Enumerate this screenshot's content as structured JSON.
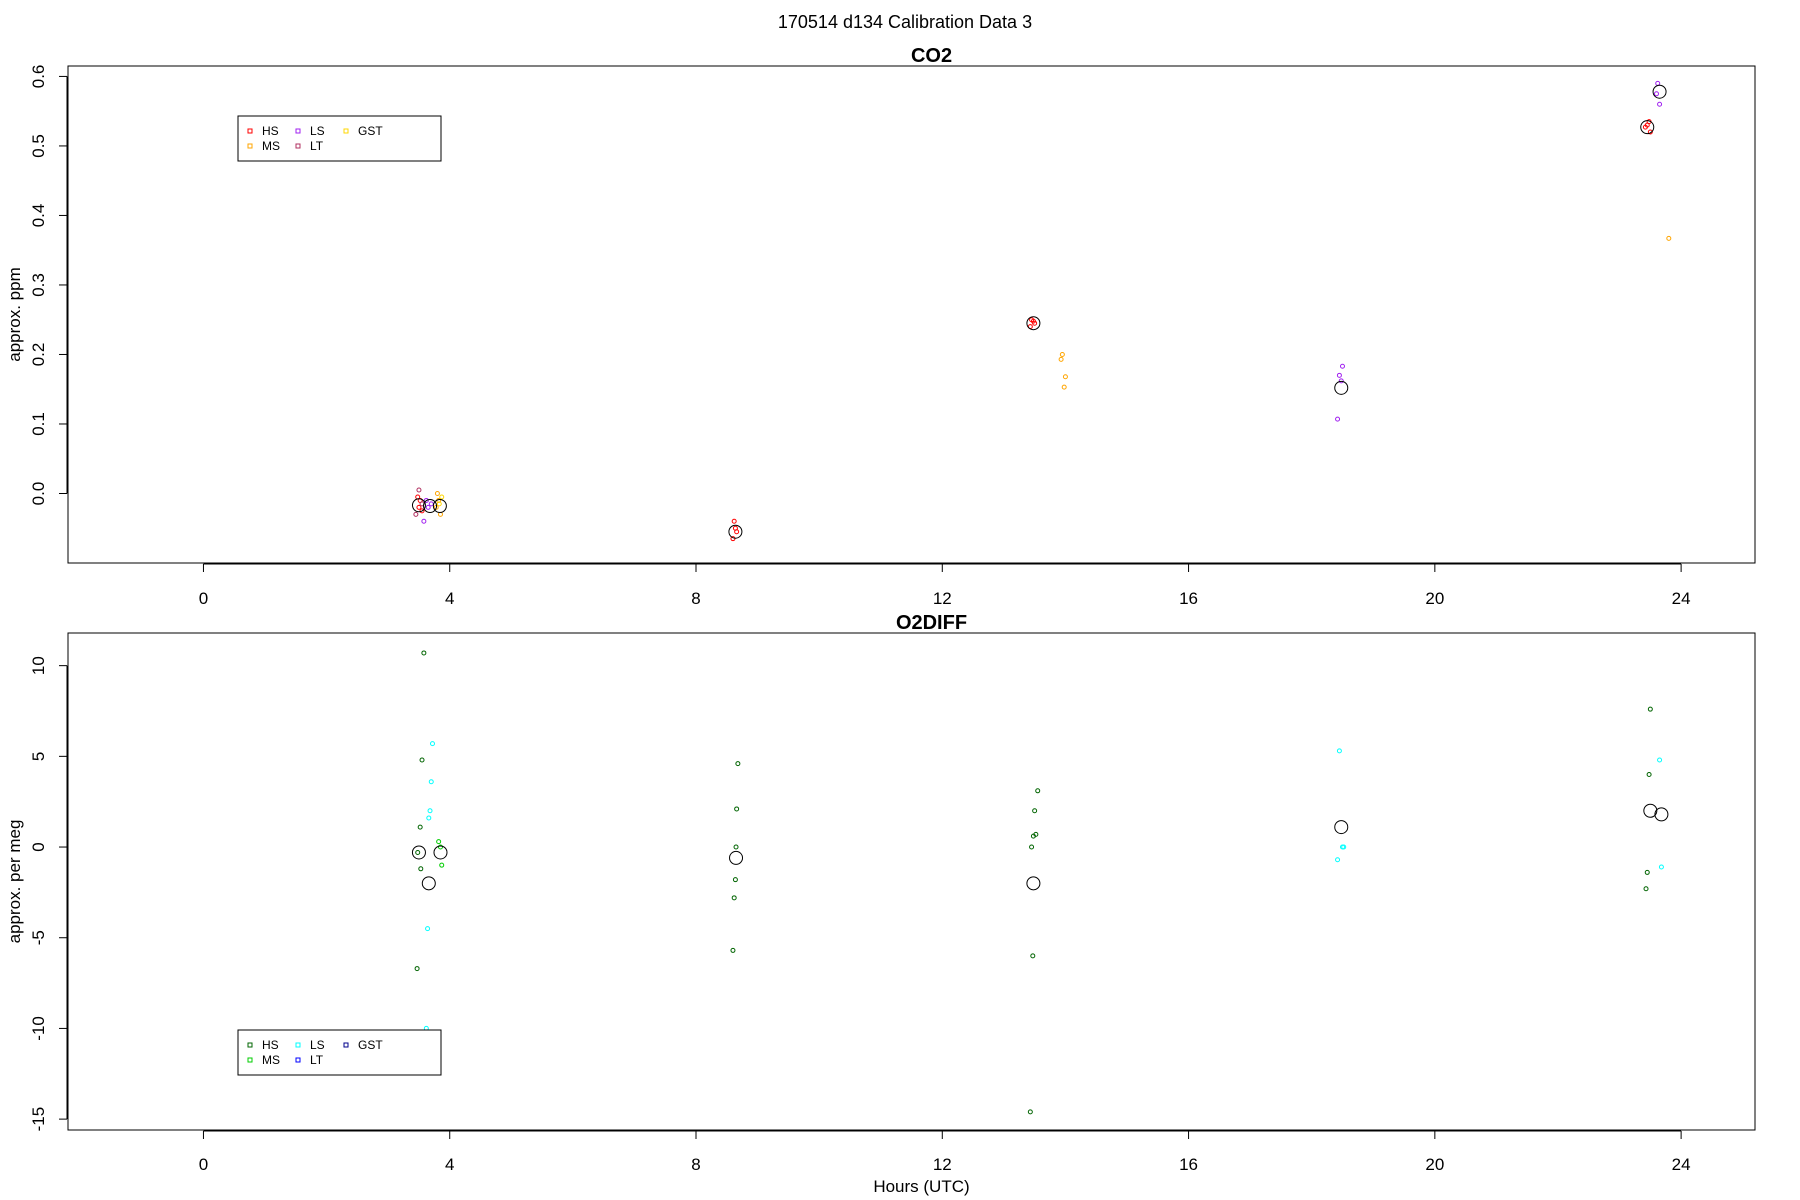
{
  "figure": {
    "main_title": "170514   d134   Calibration Data 3"
  },
  "chart_data": [
    {
      "type": "scatter",
      "title": "CO2",
      "xlabel": "",
      "ylabel": "approx. ppm",
      "xlim": [
        -2.2,
        25.2
      ],
      "ylim": [
        -0.1,
        0.615
      ],
      "xticks": [
        0,
        4,
        8,
        12,
        16,
        20,
        24
      ],
      "yticks": [
        0.0,
        0.1,
        0.2,
        0.3,
        0.4,
        0.5,
        0.6
      ],
      "ytick_labels": [
        "0.0",
        "0.1",
        "0.2",
        "0.3",
        "0.4",
        "0.5",
        "0.6"
      ],
      "legend": {
        "position": "top-left",
        "entries": [
          {
            "name": "HS",
            "color": "#ff0000"
          },
          {
            "name": "MS",
            "color": "#ffa500"
          },
          {
            "name": "LS",
            "color": "#a020f0"
          },
          {
            "name": "LT",
            "color": "#b03060"
          },
          {
            "name": "GST",
            "color": "#ffd700"
          }
        ]
      },
      "series": [
        {
          "name": "HS",
          "color": "#ff0000",
          "points": [
            [
              3.5,
              -0.02
            ],
            [
              3.52,
              -0.01
            ],
            [
              3.55,
              -0.025
            ],
            [
              3.48,
              -0.005
            ],
            [
              8.62,
              -0.04
            ],
            [
              8.64,
              -0.05
            ],
            [
              8.66,
              -0.055
            ],
            [
              8.6,
              -0.065
            ],
            [
              13.45,
              0.25
            ],
            [
              13.5,
              0.245
            ],
            [
              13.43,
              0.24
            ],
            [
              13.48,
              0.248
            ],
            [
              23.45,
              0.53
            ],
            [
              23.5,
              0.52
            ],
            [
              23.48,
              0.535
            ],
            [
              23.42,
              0.527
            ]
          ]
        },
        {
          "name": "MS",
          "color": "#ffa500",
          "points": [
            [
              3.8,
              0.0
            ],
            [
              3.82,
              -0.01
            ],
            [
              3.85,
              -0.03
            ],
            [
              3.78,
              -0.02
            ],
            [
              13.95,
              0.2
            ],
            [
              13.93,
              0.193
            ],
            [
              14.0,
              0.168
            ],
            [
              13.98,
              0.153
            ],
            [
              23.8,
              0.367
            ]
          ]
        },
        {
          "name": "LS",
          "color": "#a020f0",
          "points": [
            [
              3.62,
              -0.01
            ],
            [
              3.65,
              -0.02
            ],
            [
              3.58,
              -0.04
            ],
            [
              3.7,
              -0.015
            ],
            [
              18.42,
              0.107
            ],
            [
              18.45,
              0.17
            ],
            [
              18.5,
              0.183
            ],
            [
              18.48,
              0.162
            ],
            [
              23.62,
              0.59
            ],
            [
              23.65,
              0.56
            ],
            [
              23.6,
              0.575
            ]
          ]
        },
        {
          "name": "LT",
          "color": "#b03060",
          "points": [
            [
              3.45,
              -0.03
            ],
            [
              3.5,
              0.005
            ],
            [
              3.55,
              -0.015
            ]
          ]
        },
        {
          "name": "GST",
          "color": "#ffd700",
          "points": [
            [
              3.83,
              -0.015
            ],
            [
              3.87,
              -0.005
            ]
          ]
        }
      ],
      "means": [
        [
          3.5,
          -0.017
        ],
        [
          3.68,
          -0.018
        ],
        [
          3.84,
          -0.018
        ],
        [
          8.64,
          -0.055
        ],
        [
          13.48,
          0.245
        ],
        [
          18.48,
          0.152
        ],
        [
          23.45,
          0.527
        ],
        [
          23.65,
          0.578
        ]
      ]
    },
    {
      "type": "scatter",
      "title": "O2DIFF",
      "xlabel": "Hours (UTC)",
      "ylabel": "approx. per meg",
      "xlim": [
        -2.2,
        25.2
      ],
      "ylim": [
        -15.6,
        11.8
      ],
      "xticks": [
        0,
        4,
        8,
        12,
        16,
        20,
        24
      ],
      "yticks": [
        -15,
        -10,
        -5,
        0,
        5,
        10
      ],
      "ytick_labels": [
        "-15",
        "-10",
        "-5",
        "0",
        "5",
        "10"
      ],
      "legend": {
        "position": "bottom-left",
        "entries": [
          {
            "name": "HS",
            "color": "#006400"
          },
          {
            "name": "MS",
            "color": "#00cd00"
          },
          {
            "name": "LS",
            "color": "#00ffff"
          },
          {
            "name": "LT",
            "color": "#0000ff"
          },
          {
            "name": "GST",
            "color": "#00008b"
          }
        ]
      },
      "series": [
        {
          "name": "HS",
          "color": "#006400",
          "points": [
            [
              3.58,
              10.7
            ],
            [
              3.55,
              4.8
            ],
            [
              3.52,
              1.1
            ],
            [
              3.48,
              -0.3
            ],
            [
              3.53,
              -1.2
            ],
            [
              3.47,
              -6.7
            ],
            [
              8.68,
              4.6
            ],
            [
              8.66,
              2.1
            ],
            [
              8.65,
              0.0
            ],
            [
              8.64,
              -1.8
            ],
            [
              8.62,
              -2.8
            ],
            [
              8.6,
              -5.7
            ],
            [
              13.55,
              3.1
            ],
            [
              13.5,
              2.0
            ],
            [
              13.52,
              0.7
            ],
            [
              13.48,
              0.6
            ],
            [
              13.45,
              0.0
            ],
            [
              13.47,
              -6.0
            ],
            [
              13.43,
              -14.6
            ],
            [
              23.5,
              7.6
            ],
            [
              23.48,
              4.0
            ],
            [
              23.45,
              -1.4
            ],
            [
              23.43,
              -2.3
            ]
          ]
        },
        {
          "name": "MS",
          "color": "#00cd00",
          "points": [
            [
              3.82,
              0.3
            ],
            [
              3.87,
              -1.0
            ],
            [
              3.85,
              0.0
            ]
          ]
        },
        {
          "name": "LS",
          "color": "#00ffff",
          "points": [
            [
              3.72,
              5.7
            ],
            [
              3.7,
              3.6
            ],
            [
              3.68,
              2.0
            ],
            [
              3.66,
              1.6
            ],
            [
              3.64,
              -4.5
            ],
            [
              3.62,
              -10.0
            ],
            [
              18.45,
              5.3
            ],
            [
              18.5,
              0.0
            ],
            [
              18.52,
              0.0
            ],
            [
              18.42,
              -0.7
            ],
            [
              23.65,
              4.8
            ],
            [
              23.68,
              -1.1
            ]
          ]
        }
      ],
      "means": [
        [
          3.5,
          -0.3
        ],
        [
          3.66,
          -2.0
        ],
        [
          3.85,
          -0.3
        ],
        [
          8.65,
          -0.6
        ],
        [
          13.48,
          -2.0
        ],
        [
          18.48,
          1.1
        ],
        [
          23.5,
          2.0
        ],
        [
          23.68,
          1.8
        ]
      ]
    }
  ]
}
